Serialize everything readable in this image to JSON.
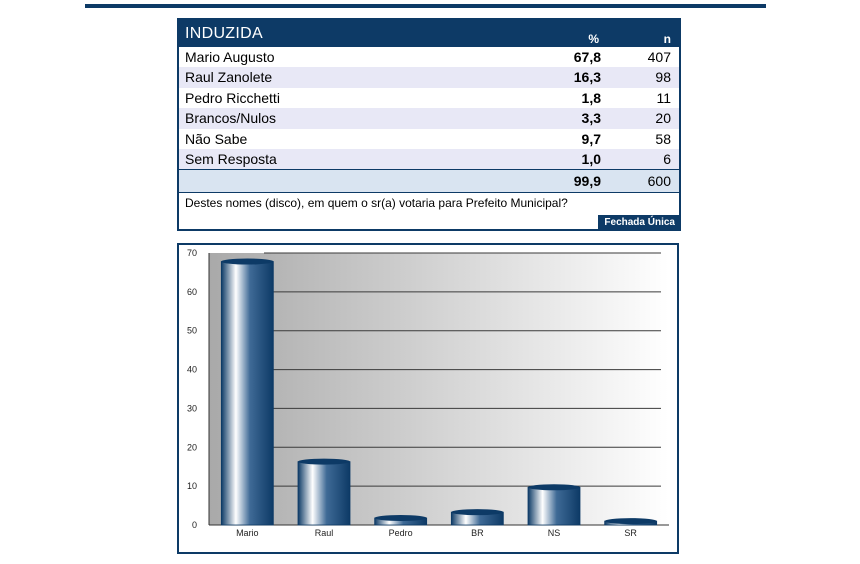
{
  "table": {
    "title": "INDUZIDA",
    "col_pct": "%",
    "col_n": "n",
    "rows": [
      {
        "label": "Mario Augusto",
        "pct": "67,8",
        "n": "407"
      },
      {
        "label": "Raul Zanolete",
        "pct": "16,3",
        "n": "98"
      },
      {
        "label": "Pedro Ricchetti",
        "pct": "1,8",
        "n": "11"
      },
      {
        "label": "Brancos/Nulos",
        "pct": "3,3",
        "n": "20"
      },
      {
        "label": "Não Sabe",
        "pct": "9,7",
        "n": "58"
      },
      {
        "label": "Sem Resposta",
        "pct": "1,0",
        "n": "6"
      }
    ],
    "total": {
      "pct": "99,9",
      "n": "600"
    },
    "question": "Destes nomes (disco), em quem o sr(a) votaria para Prefeito Municipal?",
    "question_type": "Fechada Única"
  },
  "chart_data": {
    "type": "bar",
    "categories": [
      "Mario",
      "Raul",
      "Pedro",
      "BR",
      "NS",
      "SR"
    ],
    "values": [
      67.8,
      16.3,
      1.8,
      3.3,
      9.7,
      1.0
    ],
    "ylim": [
      0,
      70
    ],
    "yticks": [
      0,
      10,
      20,
      30,
      40,
      50,
      60,
      70
    ],
    "grid": true,
    "bar_color": "#0d3a66"
  }
}
